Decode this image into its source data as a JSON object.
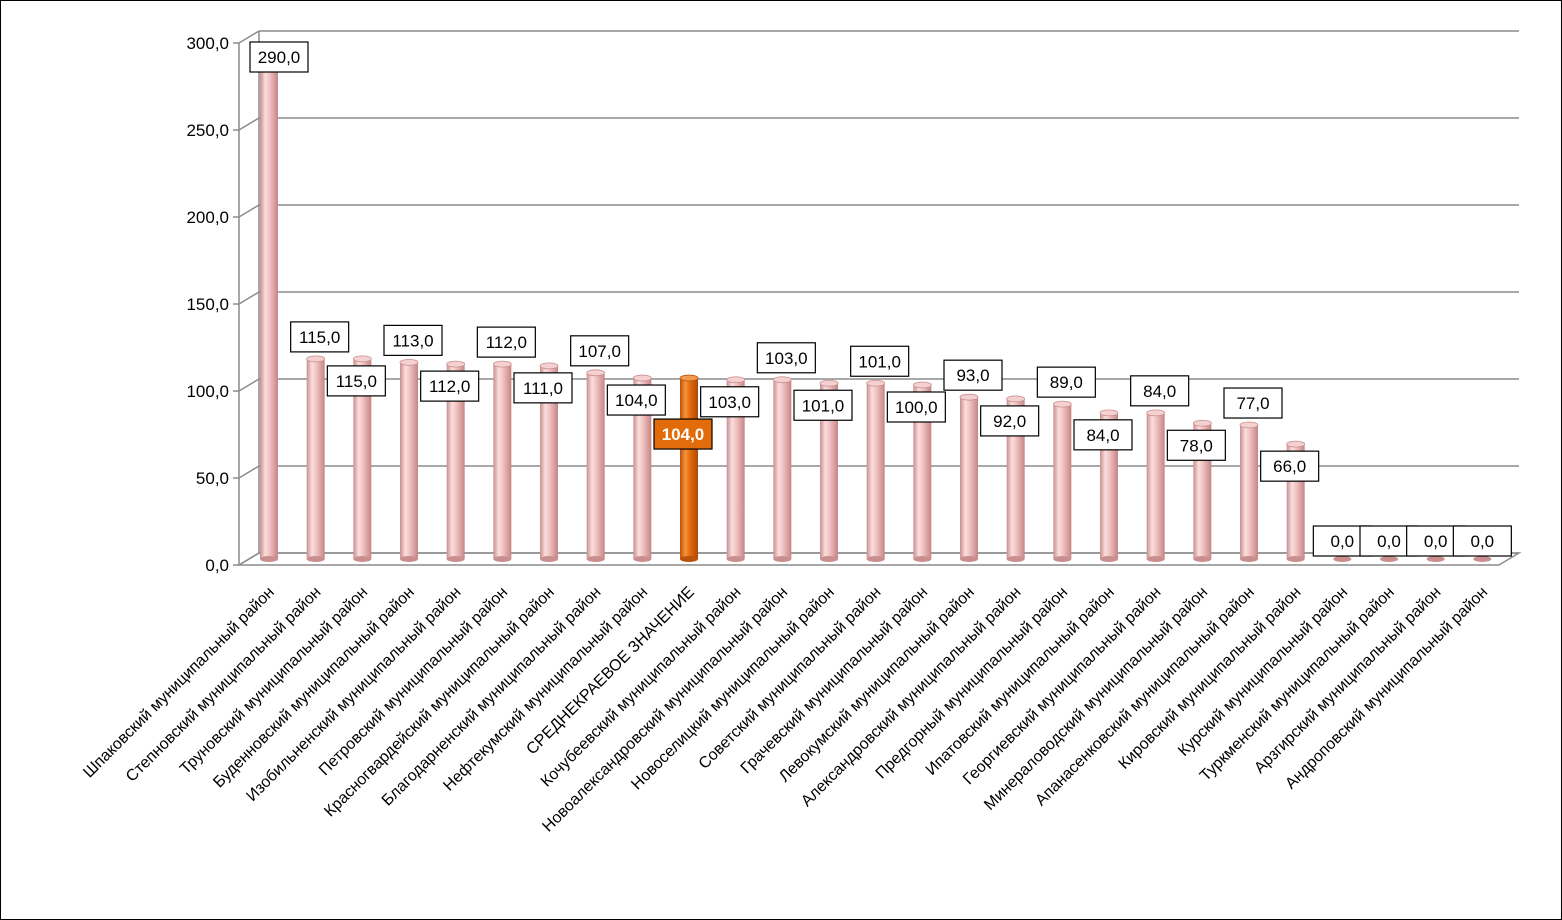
{
  "chart_data": {
    "type": "bar",
    "style": "3d-cylinder",
    "grid": true,
    "legend": "none",
    "ylim": [
      0,
      300
    ],
    "yticks": [
      "0,0",
      "50,0",
      "100,0",
      "150,0",
      "200,0",
      "250,0",
      "300,0"
    ],
    "yticks_values": [
      0,
      50,
      100,
      150,
      200,
      250,
      300
    ],
    "colors": {
      "bar": "#e6aaaa",
      "bar_highlight": "#e36c0a",
      "grid": "#8c8c8c",
      "label_box_border": "#000000",
      "label_box_fill": "#ffffff"
    },
    "highlight_index": 9,
    "categories": [
      "Шпаковский муниципальный район",
      "Степновский муниципальный район",
      "Труновский муниципальный район",
      "Буденновский муниципальный район",
      "Изобильненский муниципальный район",
      "Петровский муниципальный район",
      "Красногвардейский муниципальный район",
      "Благодарненский муниципальный район",
      "Нефтекумский муниципальный район",
      "СРЕДНЕКРАЕВОЕ ЗНАЧЕНИЕ",
      "Кочубеевский муниципальный район",
      "Новоалександровский муниципальный район",
      "Новоселицкий муниципальный район",
      "Советский муниципальный район",
      "Грачевский муниципальный район",
      "Левокумский муниципальный район",
      "Александровский муниципальный район",
      "Предгорный муниципальный район",
      "Ипатовский муниципальный район",
      "Георгиевский муниципальный район",
      "Минераловодский муниципальный район",
      "Апанасенковский муниципальный район",
      "Кировский муниципальный район",
      "Курский муниципальный район",
      "Туркменский муниципальный район",
      "Арзгирский муниципальный район",
      "Андроповский муниципальный район"
    ],
    "values": [
      290,
      115,
      115,
      113,
      112,
      112,
      111,
      107,
      104,
      104,
      103,
      103,
      101,
      101,
      100,
      93,
      92,
      89,
      84,
      84,
      78,
      77,
      66,
      0,
      0,
      0,
      0
    ],
    "labels": [
      "290,0",
      "115,0",
      "115,0",
      "113,0",
      "112,0",
      "112,0",
      "111,0",
      "107,0",
      "104,0",
      "104,0",
      "103,0",
      "103,0",
      "101,0",
      "101,0",
      "100,0",
      "93,0",
      "92,0",
      "89,0",
      "84,0",
      "84,0",
      "78,0",
      "77,0",
      "66,0",
      "0,0",
      "0,0",
      "0,0",
      "0,0"
    ]
  }
}
